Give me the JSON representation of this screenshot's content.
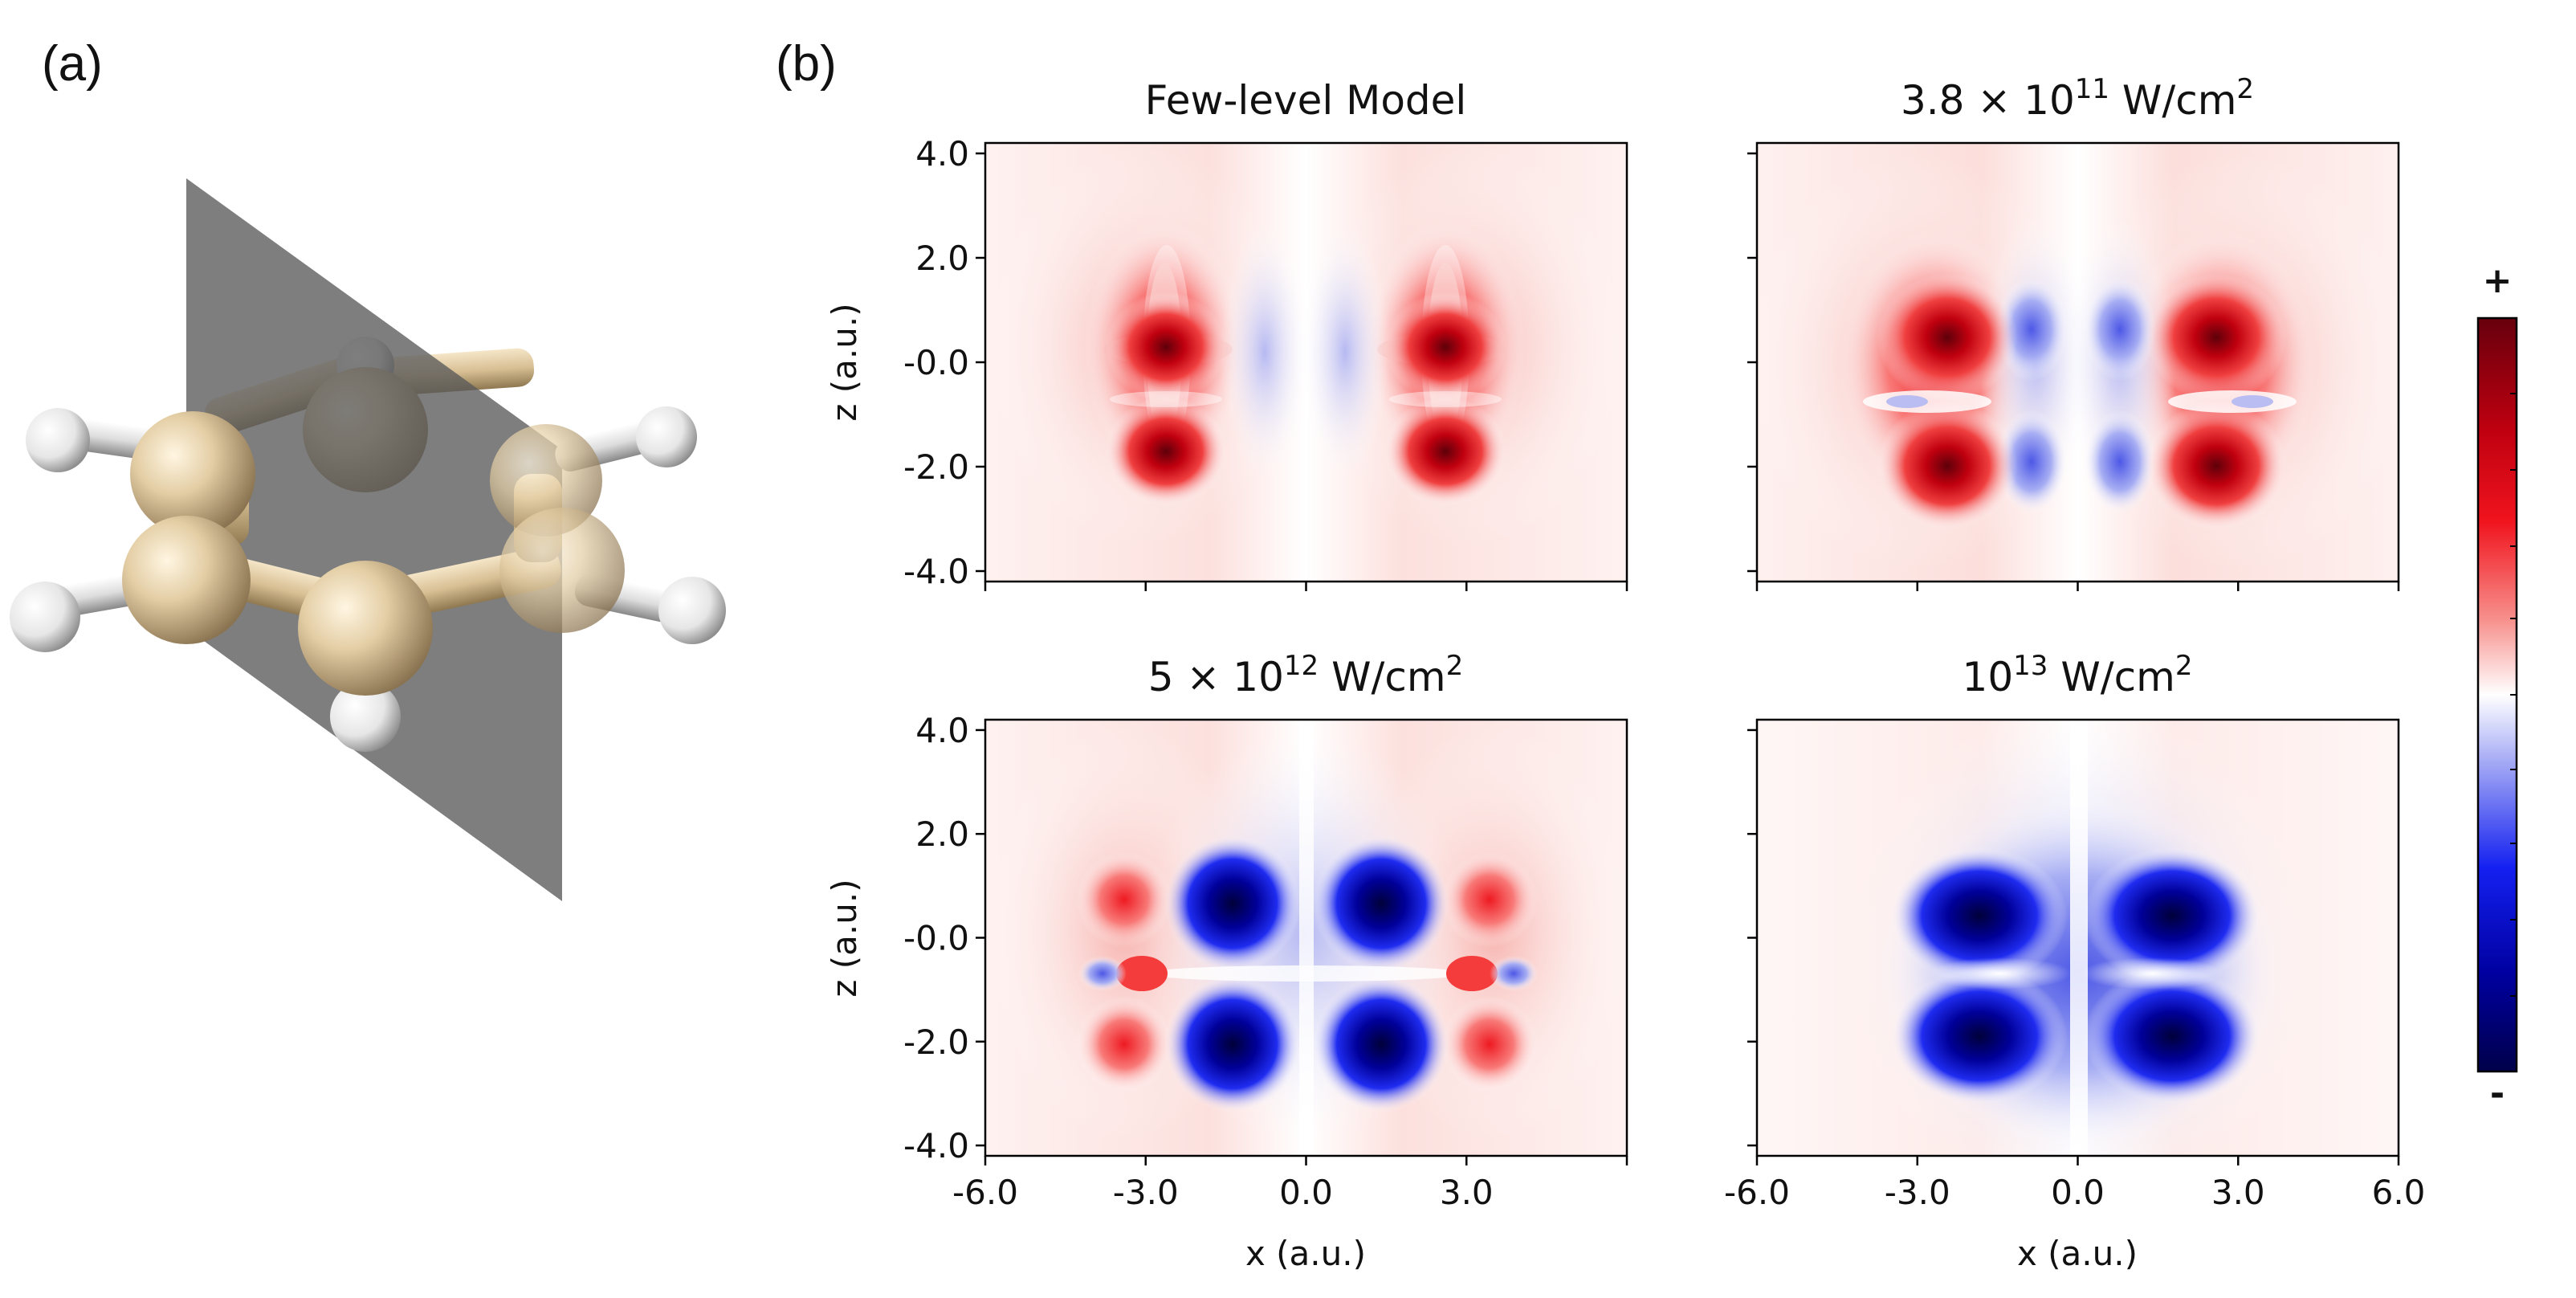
{
  "panel_a": {
    "label": "(a)",
    "description": "benzene-molecule-with-cutting-plane"
  },
  "panel_b": {
    "label": "(b)"
  },
  "chart_data": [
    {
      "type": "heatmap",
      "title": "Few-level Model",
      "xlabel": "",
      "ylabel": "z (a.u.)",
      "xlim": [
        -6.0,
        6.0
      ],
      "ylim": [
        -4.2,
        4.2
      ],
      "yticks": [
        "4.0",
        "2.0",
        "-0.0",
        "-2.0",
        "-4.0"
      ],
      "xticks": []
    },
    {
      "type": "heatmap",
      "title": {
        "base": "3.8 × 10",
        "exp": "11",
        "unit": " W/cm",
        "unit_exp": "2"
      },
      "xlabel": "",
      "ylabel": "",
      "xlim": [
        -6.0,
        6.0
      ],
      "ylim": [
        -4.2,
        4.2
      ],
      "yticks": [],
      "xticks": []
    },
    {
      "type": "heatmap",
      "title": {
        "base": "5 × 10",
        "exp": "12",
        "unit": " W/cm",
        "unit_exp": "2"
      },
      "xlabel": "x (a.u.)",
      "ylabel": "z (a.u.)",
      "xlim": [
        -6.0,
        6.0
      ],
      "ylim": [
        -4.2,
        4.2
      ],
      "yticks": [
        "4.0",
        "2.0",
        "-0.0",
        "-2.0",
        "-4.0"
      ],
      "xticks": [
        "-6.0",
        "-3.0",
        "0.0",
        "3.0"
      ]
    },
    {
      "type": "heatmap",
      "title": {
        "base": "10",
        "exp": "13",
        "unit": " W/cm",
        "unit_exp": "2"
      },
      "xlabel": "x (a.u.)",
      "ylabel": "",
      "xlim": [
        -6.0,
        6.0
      ],
      "ylim": [
        -4.2,
        4.2
      ],
      "yticks": [],
      "xticks": [
        "-6.0",
        "-3.0",
        "0.0",
        "3.0",
        "6.0"
      ]
    }
  ],
  "colorbar": {
    "plus_label": "+",
    "minus_label": "-",
    "colors": {
      "max": "#67000d",
      "mid": "#ffffff",
      "min": "#00004d",
      "red": "#e8001a",
      "blue": "#0000e0"
    }
  }
}
